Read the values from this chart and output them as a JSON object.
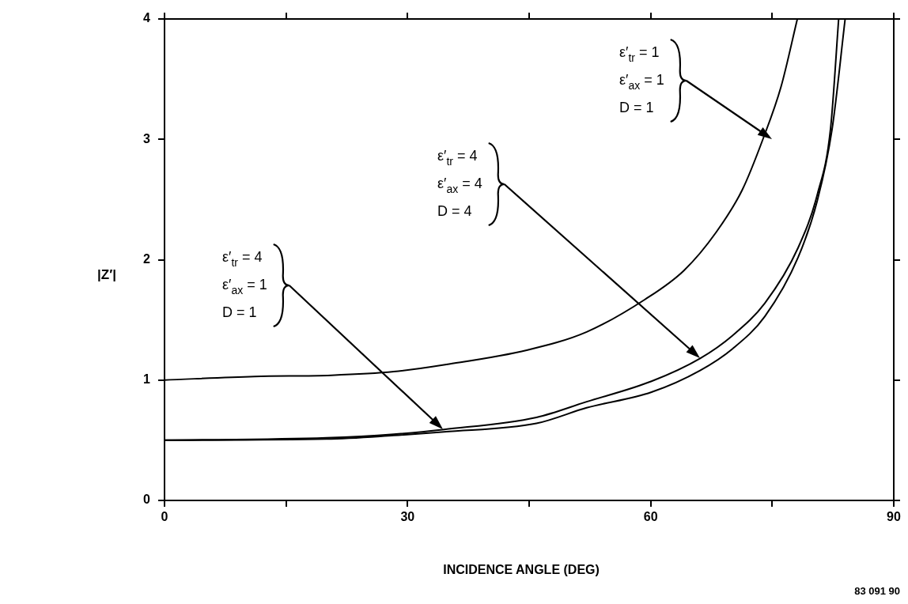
{
  "chart_data": {
    "type": "line",
    "xlabel": "INCIDENCE ANGLE (DEG)",
    "ylabel": "|Z′|",
    "xlim": [
      0,
      90
    ],
    "xticks": [
      0,
      {
        "value": 15,
        "label": null
      },
      30,
      {
        "value": 45,
        "label": null
      },
      60,
      {
        "value": 75,
        "label": null
      },
      90
    ],
    "ylim": [
      0,
      4
    ],
    "yticks": [
      0,
      1,
      2,
      3,
      4
    ],
    "grid": false,
    "legend": false,
    "marker": "none",
    "line_style": "solid",
    "series": [
      {
        "color": "#000000",
        "x": [
          0,
          11.1,
          20.6,
          28.3,
          34.8,
          44.8,
          52.1,
          59.3,
          64.1,
          68.1,
          71.3,
          73.9,
          76.1,
          78.1
        ],
        "values": [
          1.0,
          1.03,
          1.04,
          1.07,
          1.13,
          1.25,
          1.4,
          1.67,
          1.91,
          2.23,
          2.58,
          3.01,
          3.44,
          4.0
        ]
      },
      {
        "color": "#000000",
        "x": [
          0,
          20,
          28.3,
          34.5,
          45.9,
          52.1,
          60.1,
          66.1,
          70.1,
          74.1,
          78.2,
          80.6,
          82.2,
          83.2
        ],
        "values": [
          0.5,
          0.52,
          0.55,
          0.59,
          0.69,
          0.82,
          0.99,
          1.18,
          1.37,
          1.64,
          2.1,
          2.55,
          3.09,
          4.0
        ]
      },
      {
        "color": "#000000",
        "x": [
          0,
          20,
          28.3,
          34.5,
          45.9,
          52.1,
          60.1,
          66.1,
          70.1,
          74.1,
          78.2,
          80.6,
          82.4,
          84.0
        ],
        "values": [
          0.5,
          0.51,
          0.54,
          0.57,
          0.64,
          0.77,
          0.9,
          1.08,
          1.26,
          1.53,
          2.02,
          2.5,
          3.09,
          4.0
        ]
      }
    ],
    "annotations": [
      "ε′$_{tr}$ = 1\nε′$_{ax}$ = 1\nD = 1",
      "ε′$_{tr}$ = 4\nε′$_{ax}$ = 4\nD = 4",
      "ε′$_{tr}$ = 4\nε′$_{ax}$ = 1\nD = 1",
      "83 091 90"
    ]
  }
}
